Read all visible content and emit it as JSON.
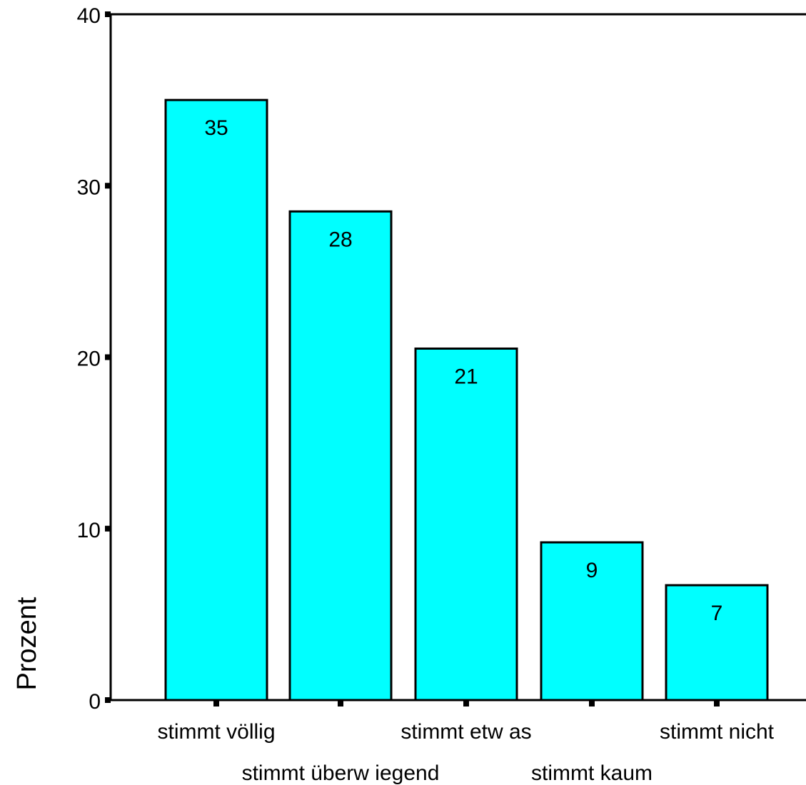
{
  "chart_data": {
    "type": "bar",
    "categories": [
      "stimmt völlig",
      "stimmt überw iegend",
      "stimmt etw as",
      "stimmt kaum",
      "stimmt nicht"
    ],
    "values": [
      35,
      28.5,
      20.5,
      9.2,
      6.7
    ],
    "data_labels": [
      "35",
      "28",
      "21",
      "9",
      "7"
    ],
    "title": "",
    "xlabel": "",
    "ylabel": "Prozent",
    "ylim": [
      0,
      40
    ],
    "yticks": [
      "0",
      "10",
      "20",
      "30",
      "40"
    ],
    "grid": false,
    "legend": "none",
    "bar_color": "#00FFFF",
    "bar_edge_color": "#000000"
  }
}
